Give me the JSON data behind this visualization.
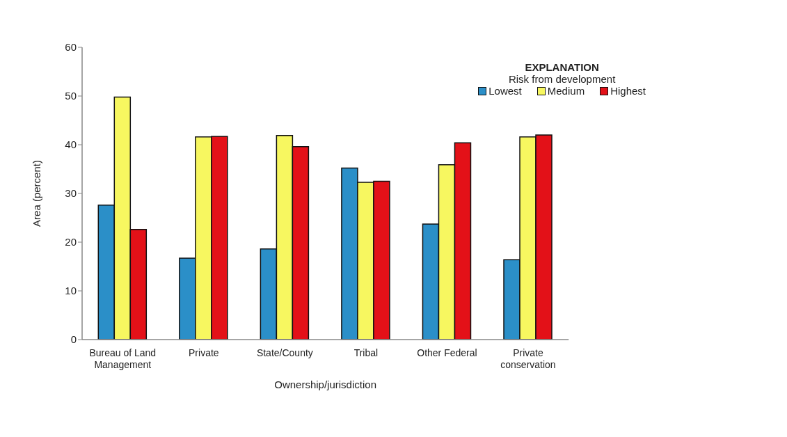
{
  "chart_data": {
    "type": "bar",
    "xlabel": "Ownership/jurisdiction",
    "ylabel": "Area (percent)",
    "legend_title": "Risk from development",
    "annotations": [
      "EXPLANATION"
    ],
    "categories": [
      "Bureau of Land Management",
      "Private",
      "State/County",
      "Tribal",
      "Other Federal",
      "Private conservation"
    ],
    "series": [
      {
        "name": "Lowest",
        "color": "#2b8fc8",
        "values": [
          27.6,
          16.7,
          18.6,
          35.2,
          23.7,
          16.4
        ]
      },
      {
        "name": "Medium",
        "color": "#f7f760",
        "values": [
          49.8,
          41.6,
          41.9,
          32.3,
          35.9,
          41.6
        ]
      },
      {
        "name": "Highest",
        "color": "#e31118",
        "values": [
          22.6,
          41.7,
          39.6,
          32.5,
          40.4,
          42.0
        ]
      }
    ],
    "ylim": [
      0,
      60
    ],
    "yticks": [
      0,
      10,
      20,
      30,
      40,
      50,
      60
    ],
    "grid": false,
    "legend": "top right"
  }
}
